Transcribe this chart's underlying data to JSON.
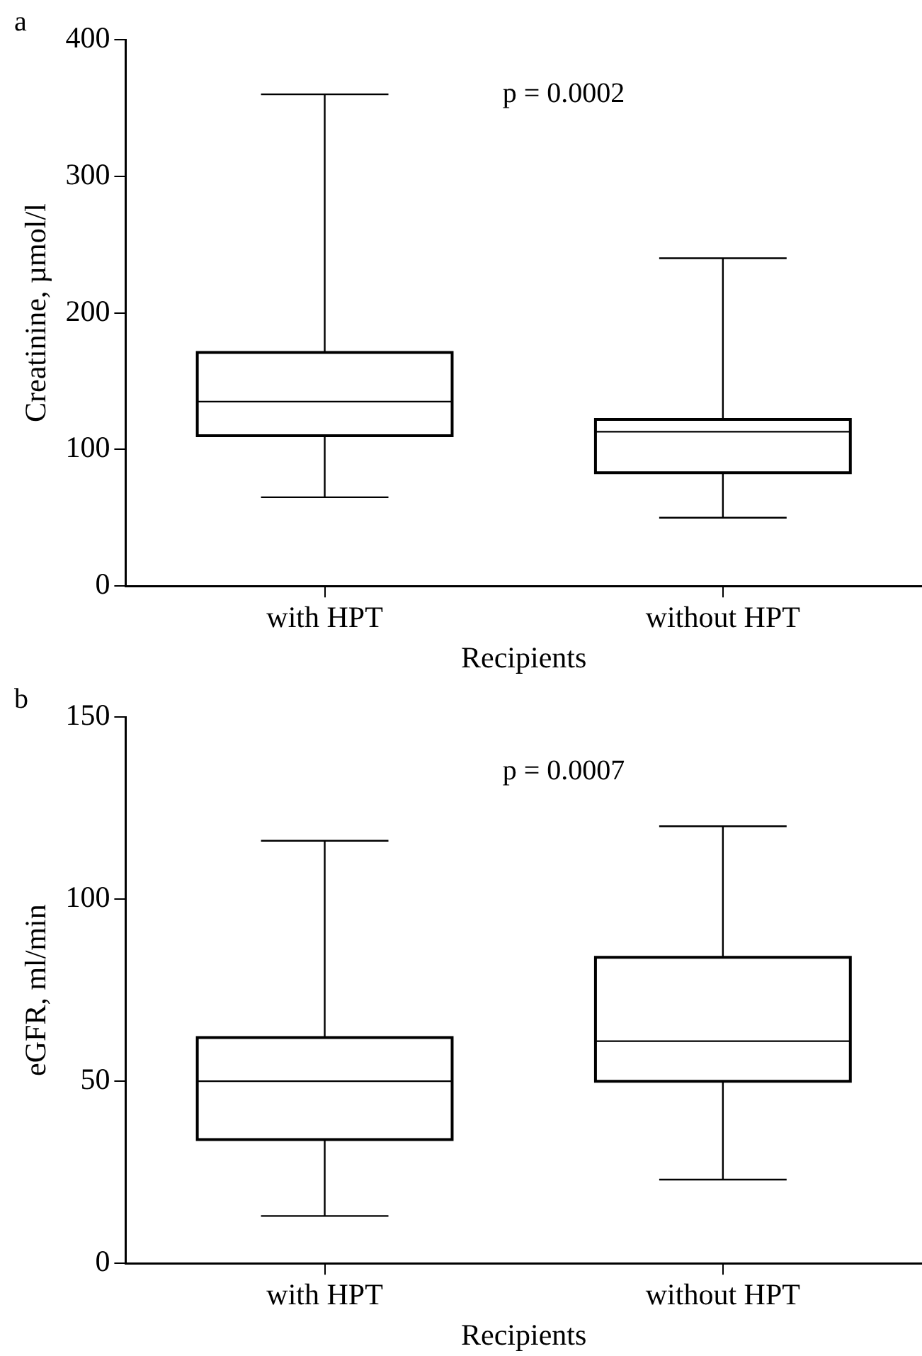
{
  "chart_data": [
    {
      "type": "box",
      "title": "a",
      "xlabel": "Recipients",
      "ylabel": "Creatinine, µmol/l",
      "categories": [
        "with HPT",
        "without HPT"
      ],
      "boxes": [
        {
          "low": 65,
          "q1": 110,
          "median": 135,
          "q3": 171,
          "high": 360
        },
        {
          "low": 50,
          "q1": 83,
          "median": 113,
          "q3": 122,
          "high": 240
        }
      ],
      "ylim": [
        0,
        400
      ],
      "yticks": [
        0,
        100,
        200,
        300,
        400
      ],
      "annotations": [
        "p = 0.0002"
      ]
    },
    {
      "type": "box",
      "title": "b",
      "xlabel": "Recipients",
      "ylabel": "eGFR, ml/min",
      "categories": [
        "with HPT",
        "without HPT"
      ],
      "boxes": [
        {
          "low": 13,
          "q1": 34,
          "median": 50,
          "q3": 62,
          "high": 116
        },
        {
          "low": 23,
          "q1": 50,
          "median": 61,
          "q3": 84,
          "high": 120
        }
      ],
      "ylim": [
        0,
        150
      ],
      "yticks": [
        0,
        50,
        100,
        150
      ],
      "annotations": [
        "p = 0.0007"
      ]
    }
  ]
}
